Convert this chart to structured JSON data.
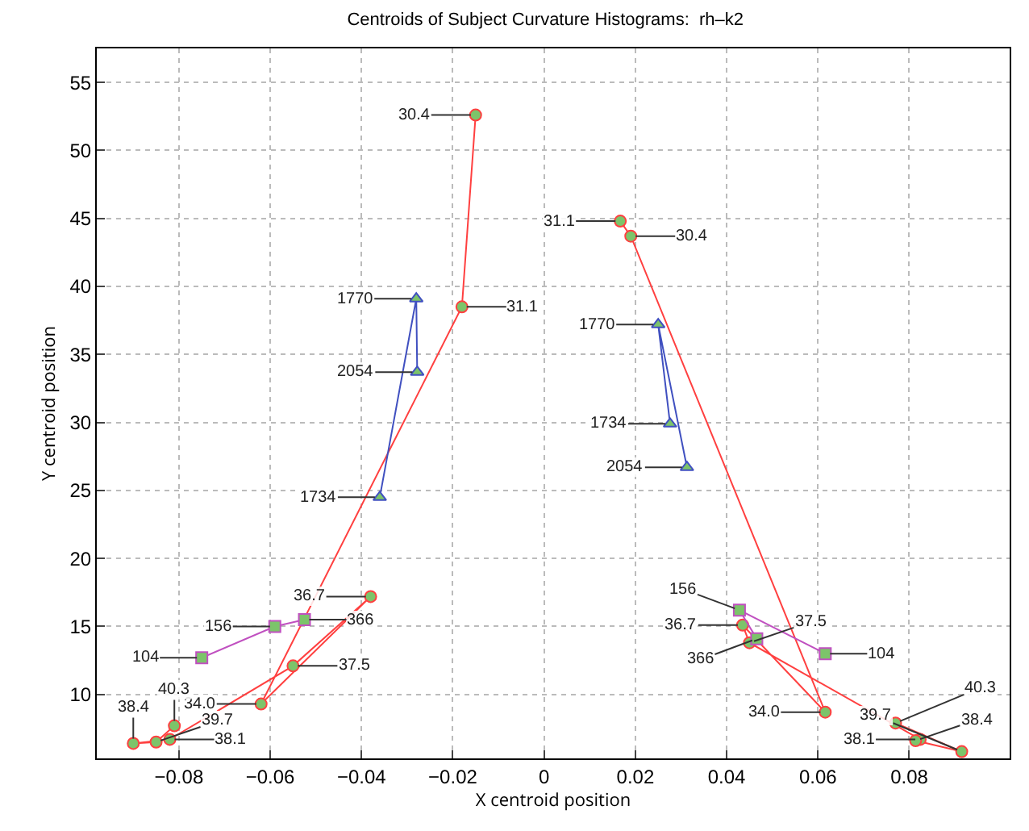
{
  "chart_data": {
    "type": "line",
    "title": "Centroids of Subject Curvature Histograms:  rh–k2",
    "xlabel": "X centroid position",
    "ylabel": "Y centroid position",
    "xlim": [
      -0.098,
      0.102
    ],
    "xticks": [
      -0.08,
      -0.06,
      -0.04,
      -0.02,
      0,
      0.02,
      0.04,
      0.06,
      0.08
    ],
    "ylim": [
      5.3,
      57.5
    ],
    "yticks": [
      10,
      15,
      20,
      25,
      30,
      35,
      40,
      45,
      50,
      55
    ],
    "grid": true,
    "line_style": "solid",
    "series": [
      {
        "color": "#ff4040",
        "marker": "circle",
        "x": [
          -0.015,
          -0.018,
          -0.062,
          -0.038,
          -0.055,
          -0.082,
          -0.09,
          -0.085,
          -0.081
        ],
        "values": [
          52.6,
          38.5,
          9.3,
          17.2,
          12.1,
          6.7,
          6.4,
          6.5,
          7.7
        ]
      },
      {
        "color": "#ff4040",
        "marker": "circle",
        "x": [
          0.0167,
          0.019,
          0.0616,
          0.0435,
          0.045,
          0.0824,
          0.0814,
          0.0915,
          0.077
        ],
        "values": [
          44.8,
          43.7,
          8.7,
          15.1,
          13.8,
          6.7,
          6.6,
          5.8,
          7.9
        ]
      },
      {
        "color": "#4050c0",
        "marker": "triangle",
        "x": [
          -0.036,
          -0.028,
          -0.0278
        ],
        "values": [
          24.5,
          39.1,
          33.7
        ]
      },
      {
        "color": "#4050c0",
        "marker": "triangle",
        "x": [
          0.0276,
          0.025,
          0.0313
        ],
        "values": [
          29.9,
          37.2,
          26.7
        ]
      },
      {
        "color": "#c050c0",
        "marker": "square",
        "x": [
          -0.075,
          -0.059,
          -0.0525
        ],
        "values": [
          12.7,
          15.0,
          15.5
        ]
      },
      {
        "color": "#c050c0",
        "marker": "square",
        "x": [
          0.0616,
          0.0428,
          0.0466
        ],
        "values": [
          13.0,
          16.2,
          14.1
        ]
      }
    ],
    "annotations": [
      {
        "text": "30.4",
        "x": -0.015,
        "y": 52.6
      },
      {
        "text": "31.1",
        "x": -0.018,
        "y": 38.5
      },
      {
        "text": "34.0",
        "x": -0.062,
        "y": 9.3
      },
      {
        "text": "36.7",
        "x": -0.038,
        "y": 17.2
      },
      {
        "text": "37.5",
        "x": -0.055,
        "y": 12.1
      },
      {
        "text": "38.1",
        "x": -0.082,
        "y": 6.7
      },
      {
        "text": "38.4",
        "x": -0.09,
        "y": 6.4
      },
      {
        "text": "39.7",
        "x": -0.085,
        "y": 6.5
      },
      {
        "text": "40.3",
        "x": -0.081,
        "y": 7.7
      },
      {
        "text": "31.1",
        "x": 0.0167,
        "y": 44.8
      },
      {
        "text": "30.4",
        "x": 0.019,
        "y": 43.7
      },
      {
        "text": "34.0",
        "x": 0.0616,
        "y": 8.7
      },
      {
        "text": "36.7",
        "x": 0.0435,
        "y": 15.1
      },
      {
        "text": "37.5",
        "x": 0.045,
        "y": 13.8
      },
      {
        "text": "38.1",
        "x": 0.0824,
        "y": 6.7
      },
      {
        "text": "38.4",
        "x": 0.0814,
        "y": 6.6
      },
      {
        "text": "39.7",
        "x": 0.0915,
        "y": 5.8
      },
      {
        "text": "40.3",
        "x": 0.077,
        "y": 7.9
      },
      {
        "text": "1734",
        "x": -0.036,
        "y": 24.5
      },
      {
        "text": "1770",
        "x": -0.028,
        "y": 39.1
      },
      {
        "text": "2054",
        "x": -0.0278,
        "y": 33.7
      },
      {
        "text": "1734",
        "x": 0.0276,
        "y": 29.9
      },
      {
        "text": "1770",
        "x": 0.025,
        "y": 37.2
      },
      {
        "text": "2054",
        "x": 0.0313,
        "y": 26.7
      },
      {
        "text": "104",
        "x": -0.075,
        "y": 12.7
      },
      {
        "text": "156",
        "x": -0.059,
        "y": 15.0
      },
      {
        "text": "366",
        "x": -0.0525,
        "y": 15.5
      },
      {
        "text": "104",
        "x": 0.0616,
        "y": 13.0
      },
      {
        "text": "156",
        "x": 0.0428,
        "y": 16.2
      },
      {
        "text": "366",
        "x": 0.0466,
        "y": 14.1
      }
    ]
  }
}
